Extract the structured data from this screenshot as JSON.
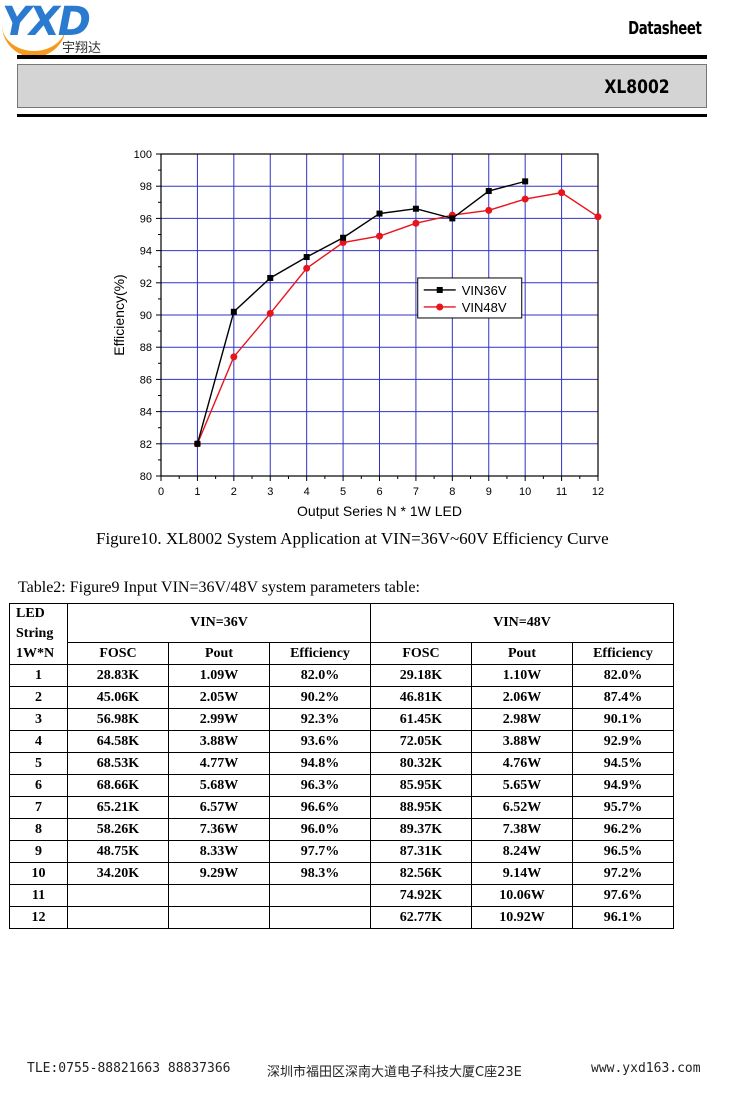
{
  "header": {
    "logo_letters": "YXD",
    "logo_chinese": "宇翔达",
    "doc_type": "Datasheet",
    "part_number": "XL8002"
  },
  "colors": {
    "series_36v": "#000000",
    "series_48v": "#e8141c",
    "grid": "#3232c8",
    "title_bar": "#d4d4d4"
  },
  "chart_data": {
    "type": "line",
    "xlabel": "Output Series N * 1W LED",
    "ylabel": "Efficiency(%)",
    "xlim": [
      0,
      12
    ],
    "ylim": [
      80,
      100
    ],
    "x_ticks": [
      0,
      1,
      2,
      3,
      4,
      5,
      6,
      7,
      8,
      9,
      10,
      11,
      12
    ],
    "y_ticks": [
      80,
      82,
      84,
      86,
      88,
      90,
      92,
      94,
      96,
      98,
      100
    ],
    "grid": true,
    "legend_position": "center-right",
    "series": [
      {
        "name": "VIN36V",
        "marker": "square",
        "color": "#000000",
        "x": [
          1,
          2,
          3,
          4,
          5,
          6,
          7,
          8,
          9,
          10
        ],
        "y": [
          82.0,
          90.2,
          92.3,
          93.6,
          94.8,
          96.3,
          96.6,
          96.0,
          97.7,
          98.3
        ]
      },
      {
        "name": "VIN48V",
        "marker": "circle",
        "color": "#e8141c",
        "x": [
          1,
          2,
          3,
          4,
          5,
          6,
          7,
          8,
          9,
          10,
          11,
          12
        ],
        "y": [
          82.0,
          87.4,
          90.1,
          92.9,
          94.5,
          94.9,
          95.7,
          96.2,
          96.5,
          97.2,
          97.6,
          96.1
        ]
      }
    ]
  },
  "caption": "Figure10. XL8002 System Application at VIN=36V~60V Efficiency Curve",
  "table": {
    "title": "Table2: Figure9 Input VIN=36V/48V system parameters table:",
    "led_header": [
      "LED",
      "String",
      "1W*N"
    ],
    "group_36": "VIN=36V",
    "group_48": "VIN=48V",
    "col_fosc": "FOSC",
    "col_pout": "Pout",
    "col_eff": "Efficiency",
    "rows": [
      [
        "1",
        "28.83K",
        "1.09W",
        "82.0%",
        "29.18K",
        "1.10W",
        "82.0%"
      ],
      [
        "2",
        "45.06K",
        "2.05W",
        "90.2%",
        "46.81K",
        "2.06W",
        "87.4%"
      ],
      [
        "3",
        "56.98K",
        "2.99W",
        "92.3%",
        "61.45K",
        "2.98W",
        "90.1%"
      ],
      [
        "4",
        "64.58K",
        "3.88W",
        "93.6%",
        "72.05K",
        "3.88W",
        "92.9%"
      ],
      [
        "5",
        "68.53K",
        "4.77W",
        "94.8%",
        "80.32K",
        "4.76W",
        "94.5%"
      ],
      [
        "6",
        "68.66K",
        "5.68W",
        "96.3%",
        "85.95K",
        "5.65W",
        "94.9%"
      ],
      [
        "7",
        "65.21K",
        "6.57W",
        "96.6%",
        "88.95K",
        "6.52W",
        "95.7%"
      ],
      [
        "8",
        "58.26K",
        "7.36W",
        "96.0%",
        "89.37K",
        "7.38W",
        "96.2%"
      ],
      [
        "9",
        "48.75K",
        "8.33W",
        "97.7%",
        "87.31K",
        "8.24W",
        "96.5%"
      ],
      [
        "10",
        "34.20K",
        "9.29W",
        "98.3%",
        "82.56K",
        "9.14W",
        "97.2%"
      ],
      [
        "11",
        "",
        "",
        "",
        "74.92K",
        "10.06W",
        "97.6%"
      ],
      [
        "12",
        "",
        "",
        "",
        "62.77K",
        "10.92W",
        "96.1%"
      ]
    ]
  },
  "footer": {
    "phone": "TLE:0755-88821663  88837366",
    "address": "深圳市福田区深南大道电子科技大厦C座23E",
    "website": "www.yxd163.com"
  }
}
